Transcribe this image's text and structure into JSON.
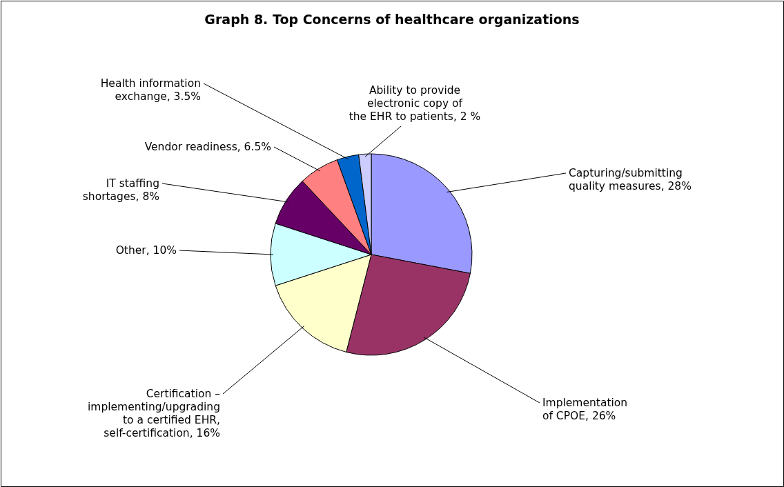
{
  "chart_data": {
    "type": "pie",
    "title": "Graph 8. Top Concerns of healthcare organizations",
    "categories": [
      "Capturing/submitting quality measures",
      "Implementation of CPOE",
      "Certification – implementing/upgrading to a certified EHR,  self-certification",
      "Other",
      "IT staffing shortages",
      "Vendor readiness",
      "Health information exchange",
      "Ability to provide electronic copy of the EHR to patients"
    ],
    "values": [
      28,
      26,
      16,
      10,
      8,
      6.5,
      3.5,
      2
    ],
    "colors": [
      "#9999ff",
      "#993366",
      "#ffffcc",
      "#ccffff",
      "#660066",
      "#ff8080",
      "#0066cc",
      "#ccccff"
    ],
    "value_labels": [
      "28%",
      "26%",
      "16%",
      "10%",
      "8%",
      "6.5%",
      "3.5%",
      "2 %"
    ]
  }
}
